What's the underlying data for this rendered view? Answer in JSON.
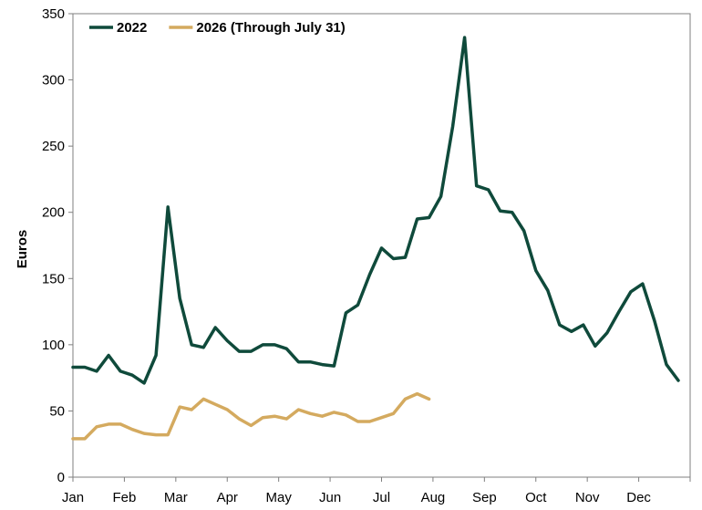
{
  "chart_data": {
    "type": "line",
    "title": "",
    "xlabel": "",
    "ylabel": "Euros",
    "ylim": [
      0,
      350
    ],
    "yticks": [
      0,
      50,
      100,
      150,
      200,
      250,
      300,
      350
    ],
    "months": [
      "Jan",
      "Feb",
      "Mar",
      "Apr",
      "May",
      "Jun",
      "Jul",
      "Aug",
      "Sep",
      "Oct",
      "Nov",
      "Dec"
    ],
    "x_unit": "week",
    "legend_position": "top-left",
    "grid": false,
    "series": [
      {
        "name": "2022",
        "color": "#0f4a3b",
        "x": [
          0,
          1,
          2,
          3,
          4,
          5,
          6,
          7,
          8,
          9,
          10,
          11,
          12,
          13,
          14,
          15,
          16,
          17,
          18,
          19,
          20,
          21,
          22,
          23,
          24,
          25,
          26,
          27,
          28,
          29,
          30,
          31,
          32,
          33,
          34,
          35,
          36,
          37,
          38,
          39,
          40,
          41,
          42,
          43,
          44,
          45,
          46,
          47,
          48,
          49,
          50,
          51
        ],
        "values": [
          83,
          83,
          80,
          92,
          80,
          77,
          71,
          92,
          204,
          135,
          100,
          98,
          113,
          103,
          95,
          95,
          100,
          100,
          97,
          87,
          87,
          85,
          84,
          124,
          130,
          153,
          173,
          165,
          166,
          195,
          196,
          212,
          265,
          332,
          220,
          217,
          201,
          200,
          186,
          156,
          141,
          115,
          110,
          115,
          99,
          109,
          125,
          140,
          146,
          118,
          85,
          73
        ]
      },
      {
        "name": "2026 (Through July 31)",
        "color": "#d4aa5f",
        "x": [
          0,
          1,
          2,
          3,
          4,
          5,
          6,
          7,
          8,
          9,
          10,
          11,
          12,
          13,
          14,
          15,
          16,
          17,
          18,
          19,
          20,
          21,
          22,
          23,
          24,
          25,
          26,
          27,
          28,
          29,
          30
        ],
        "values": [
          29,
          29,
          38,
          40,
          40,
          36,
          33,
          32,
          32,
          53,
          51,
          59,
          55,
          51,
          44,
          39,
          45,
          46,
          44,
          51,
          48,
          46,
          49,
          47,
          42,
          42,
          45,
          48,
          59,
          63,
          59
        ]
      }
    ]
  }
}
